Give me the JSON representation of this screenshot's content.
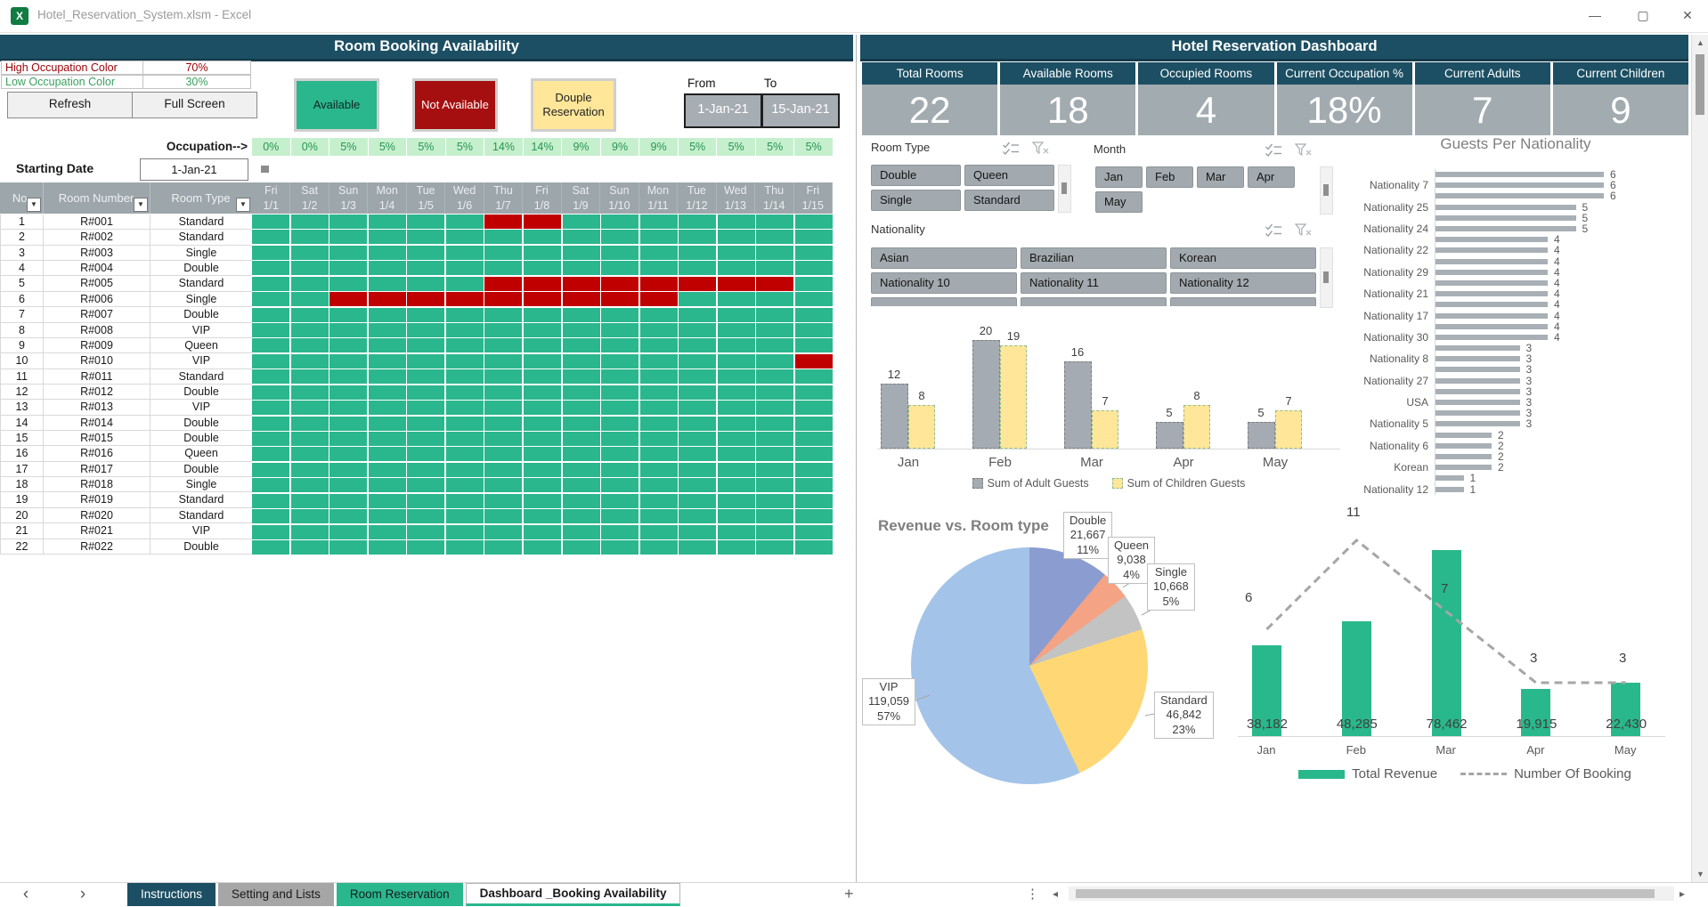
{
  "window": {
    "title": "Hotel_Reservation_System.xlsm - Excel"
  },
  "icons": {
    "minimize": "—",
    "maximize": "▢",
    "close": "✕",
    "prev": "‹",
    "next": "›",
    "add_sheet": "+",
    "more_dots": "⋮",
    "scroll_up": "▲",
    "scroll_down": "▼",
    "scroll_left": "◂",
    "scroll_right": "▸",
    "dropdown": "▼",
    "excel_logo": "X"
  },
  "colors": {
    "teal": "#1c4f63",
    "green": "#2ab78d",
    "red": "#c00000",
    "legend_red": "#a60f0f",
    "yellow": "#ffe699",
    "kpi_gray": "#a2abb0",
    "header_gray": "#9da6ab"
  },
  "left_panel": {
    "title": "Room Booking Availability",
    "settings": [
      {
        "label": "High Occupation Color",
        "value": "70%",
        "color": "#9c0006"
      },
      {
        "label": "Low Occupation Color",
        "value": "30%",
        "color": "#3aa05f"
      }
    ],
    "buttons": {
      "refresh": "Refresh",
      "full_screen": "Full Screen"
    },
    "legend": [
      {
        "label": "Available",
        "bg": "#2ab78d",
        "fg": "#10271f"
      },
      {
        "label": "Not Available",
        "bg": "#a60f0f",
        "fg": "#ffffff"
      },
      {
        "label": "Douple Reservation",
        "bg": "#ffe699",
        "fg": "#222222"
      }
    ],
    "from_label": "From",
    "to_label": "To",
    "from_value": "1-Jan-21",
    "to_value": "15-Jan-21",
    "occupation_label": "Occupation-->",
    "occupation_values": [
      "0%",
      "0%",
      "5%",
      "5%",
      "5%",
      "5%",
      "14%",
      "14%",
      "9%",
      "9%",
      "9%",
      "5%",
      "5%",
      "5%",
      "5%"
    ],
    "starting_date_label": "Starting Date",
    "starting_date_value": "1-Jan-21",
    "table_headers": [
      "No.",
      "Room Number",
      "Room Type"
    ],
    "days": [
      {
        "day": "Fri",
        "date": "1/1"
      },
      {
        "day": "Sat",
        "date": "1/2"
      },
      {
        "day": "Sun",
        "date": "1/3"
      },
      {
        "day": "Mon",
        "date": "1/4"
      },
      {
        "day": "Tue",
        "date": "1/5"
      },
      {
        "day": "Wed",
        "date": "1/6"
      },
      {
        "day": "Thu",
        "date": "1/7"
      },
      {
        "day": "Fri",
        "date": "1/8"
      },
      {
        "day": "Sat",
        "date": "1/9"
      },
      {
        "day": "Sun",
        "date": "1/10"
      },
      {
        "day": "Mon",
        "date": "1/11"
      },
      {
        "day": "Tue",
        "date": "1/12"
      },
      {
        "day": "Wed",
        "date": "1/13"
      },
      {
        "day": "Thu",
        "date": "1/14"
      },
      {
        "day": "Fri",
        "date": "1/15"
      }
    ],
    "rooms": [
      {
        "no": "1",
        "number": "R#001",
        "type": "Standard",
        "booked": [
          7,
          8
        ]
      },
      {
        "no": "2",
        "number": "R#002",
        "type": "Standard",
        "booked": []
      },
      {
        "no": "3",
        "number": "R#003",
        "type": "Single",
        "booked": []
      },
      {
        "no": "4",
        "number": "R#004",
        "type": "Double",
        "booked": []
      },
      {
        "no": "5",
        "number": "R#005",
        "type": "Standard",
        "booked": [
          7,
          8,
          9,
          10,
          11,
          12,
          13,
          14
        ]
      },
      {
        "no": "6",
        "number": "R#006",
        "type": "Single",
        "booked": [
          3,
          4,
          5,
          6,
          7,
          8,
          9,
          10,
          11
        ]
      },
      {
        "no": "7",
        "number": "R#007",
        "type": "Double",
        "booked": []
      },
      {
        "no": "8",
        "number": "R#008",
        "type": "VIP",
        "booked": []
      },
      {
        "no": "9",
        "number": "R#009",
        "type": "Queen",
        "booked": []
      },
      {
        "no": "10",
        "number": "R#010",
        "type": "VIP",
        "booked": [
          15
        ]
      },
      {
        "no": "11",
        "number": "R#011",
        "type": "Standard",
        "booked": []
      },
      {
        "no": "12",
        "number": "R#012",
        "type": "Double",
        "booked": []
      },
      {
        "no": "13",
        "number": "R#013",
        "type": "VIP",
        "booked": []
      },
      {
        "no": "14",
        "number": "R#014",
        "type": "Double",
        "booked": []
      },
      {
        "no": "15",
        "number": "R#015",
        "type": "Double",
        "booked": []
      },
      {
        "no": "16",
        "number": "R#016",
        "type": "Queen",
        "booked": []
      },
      {
        "no": "17",
        "number": "R#017",
        "type": "Double",
        "booked": []
      },
      {
        "no": "18",
        "number": "R#018",
        "type": "Single",
        "booked": []
      },
      {
        "no": "19",
        "number": "R#019",
        "type": "Standard",
        "booked": []
      },
      {
        "no": "20",
        "number": "R#020",
        "type": "Standard",
        "booked": []
      },
      {
        "no": "21",
        "number": "R#021",
        "type": "VIP",
        "booked": []
      },
      {
        "no": "22",
        "number": "R#022",
        "type": "Double",
        "booked": []
      }
    ]
  },
  "right_panel": {
    "title": "Hotel Reservation Dashboard",
    "kpis": [
      {
        "label": "Total Rooms",
        "value": "22"
      },
      {
        "label": "Available Rooms",
        "value": "18"
      },
      {
        "label": "Occupied Rooms",
        "value": "4"
      },
      {
        "label": "Current Occupation %",
        "value": "18%"
      },
      {
        "label": "Current Adults",
        "value": "7"
      },
      {
        "label": "Current Children",
        "value": "9"
      }
    ],
    "slicers": [
      {
        "id": "room-type",
        "title": "Room Type",
        "columns": 2,
        "clipped_items": 0,
        "items": [
          "Double",
          "Queen",
          "Single",
          "Standard"
        ]
      },
      {
        "id": "month",
        "title": "Month",
        "columns": 4,
        "clipped_items": 0,
        "items": [
          "Jan",
          "Feb",
          "Mar",
          "Apr",
          "May"
        ]
      },
      {
        "id": "nationality",
        "title": "Nationality",
        "columns": 3,
        "clipped_items": 3,
        "items": [
          "Asian",
          "Brazilian",
          "Korean",
          "Nationality 10",
          "Nationality 11",
          "Nationality 12"
        ]
      }
    ]
  },
  "chart_data": [
    {
      "type": "bar",
      "orientation": "horizontal",
      "title": "Guests Per Nationality",
      "categories": [
        "",
        "Nationality 7",
        "",
        "Nationality 25",
        "",
        "Nationality 24",
        "",
        "Nationality 22",
        "",
        "Nationality 29",
        "",
        "Nationality 21",
        "",
        "Nationality 17",
        "",
        "Nationality 30",
        "",
        "Nationality 8",
        "",
        "Nationality 27",
        "",
        "USA",
        "",
        "Nationality 5",
        "",
        "Nationality 6",
        "",
        "Korean",
        "",
        "Nationality 12"
      ],
      "values": [
        6,
        6,
        6,
        5,
        5,
        5,
        4,
        4,
        4,
        4,
        4,
        4,
        4,
        4,
        4,
        4,
        3,
        3,
        3,
        3,
        3,
        3,
        3,
        3,
        2,
        2,
        2,
        2,
        1,
        1
      ],
      "xlim": [
        0,
        7
      ],
      "bar_color": "#a8b0b6",
      "grid": false,
      "legend_position": "none"
    },
    {
      "type": "bar",
      "title": "",
      "categories": [
        "Jan",
        "Feb",
        "Mar",
        "Apr",
        "May"
      ],
      "series": [
        {
          "name": "Sum of Adult Guests",
          "values": [
            12,
            20,
            16,
            5,
            5
          ],
          "color": "#a5abb2",
          "border": "#7f7f7f"
        },
        {
          "name": "Sum of Children Guests",
          "values": [
            8,
            19,
            7,
            8,
            7
          ],
          "color": "#ffe699",
          "border": "#8fbf8f"
        }
      ],
      "ylim": [
        0,
        22
      ],
      "grid": false,
      "legend_position": "bottom"
    },
    {
      "type": "pie",
      "title": "Revenue vs. Room type",
      "slices": [
        {
          "label": "Double",
          "value": 21667,
          "display": "21,667",
          "pct": 11,
          "color": "#8b9cd1"
        },
        {
          "label": "Queen",
          "value": 9038,
          "display": "9,038",
          "pct": 4,
          "color": "#f4a384"
        },
        {
          "label": "Single",
          "value": 10668,
          "display": "10,668",
          "pct": 5,
          "color": "#c3c3c3"
        },
        {
          "label": "Standard",
          "value": 46842,
          "display": "46,842",
          "pct": 23,
          "color": "#ffd875"
        },
        {
          "label": "VIP",
          "value": 119059,
          "display": "119,059",
          "pct": 57,
          "color": "#a3c4e8"
        }
      ],
      "legend_position": "none"
    },
    {
      "type": "combo",
      "categories": [
        "Jan",
        "Feb",
        "Mar",
        "Apr",
        "May"
      ],
      "series": [
        {
          "name": "Total Revenue",
          "type": "bar",
          "values": [
            38182,
            48285,
            78462,
            19915,
            22430
          ],
          "labels": [
            "38,182",
            "48,285",
            "78,462",
            "19,915",
            "22,430"
          ],
          "color": "#29b88b"
        },
        {
          "name": "Number Of Booking",
          "type": "line",
          "values": [
            6,
            11,
            7,
            3,
            3
          ],
          "labels": [
            "6",
            "11",
            "7",
            "3",
            "3"
          ],
          "color": "#a6a6a6",
          "dashed": true
        }
      ],
      "grid": false,
      "legend_position": "bottom"
    }
  ],
  "sheet_tabs": {
    "items": [
      {
        "label": "Instructions",
        "bg": "#1c4f63",
        "fg": "#ffffff",
        "active": false
      },
      {
        "label": "Setting and Lists",
        "bg": "#a6a6a6",
        "fg": "#1a1a1a",
        "active": false
      },
      {
        "label": "Room Reservation",
        "bg": "#2ab78d",
        "fg": "#1a1a1a",
        "active": false
      },
      {
        "label": "Dashboard _Booking Availability",
        "bg": "#ffffff",
        "fg": "#111111",
        "active": true
      }
    ]
  }
}
